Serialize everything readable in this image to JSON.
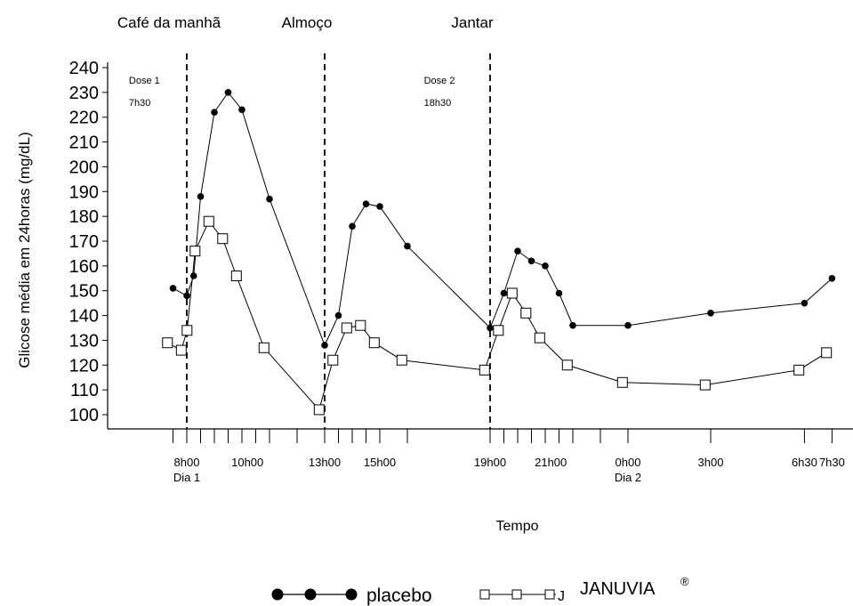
{
  "chart_data": {
    "type": "line",
    "ylabel": "Glicose média em 24horas  (mg/dL)",
    "xlabel": "Tempo",
    "ylim": [
      100,
      240
    ],
    "yticks": [
      100,
      110,
      120,
      130,
      140,
      150,
      160,
      170,
      180,
      190,
      200,
      210,
      220,
      230,
      240
    ],
    "x_unit": "hours since 8h00 (Dia 1)",
    "xlim": [
      -1.3,
      23.7
    ],
    "x_tick_labels": [
      {
        "x": 0,
        "label": "8h00",
        "sublabel": "Dia 1"
      },
      {
        "x": 2.2,
        "label": "10h00"
      },
      {
        "x": 5,
        "label": "13h00"
      },
      {
        "x": 7,
        "label": "15h00"
      },
      {
        "x": 11,
        "label": "19h00"
      },
      {
        "x": 13.2,
        "label": "21h00"
      },
      {
        "x": 16,
        "label": "0h00",
        "sublabel": "Dia 2"
      },
      {
        "x": 19,
        "label": "3h00"
      },
      {
        "x": 22.4,
        "label": "6h30"
      },
      {
        "x": 23.4,
        "label": "7h30"
      }
    ],
    "x_minor_ticks": [
      -0.5,
      0,
      0.5,
      1,
      1.5,
      2,
      2.5,
      3,
      4,
      5,
      5.5,
      6,
      6.5,
      7,
      8,
      11,
      11.5,
      12,
      12.5,
      13,
      13.5,
      14,
      15,
      16,
      19,
      22.4,
      23.4
    ],
    "meal_lines": [
      {
        "x": 0,
        "label": "Café da manhã"
      },
      {
        "x": 5,
        "label": "Almoço"
      },
      {
        "x": 11,
        "label": "Jantar"
      }
    ],
    "annotations": [
      {
        "x": -2.1,
        "y": 235,
        "text": "Dose 1"
      },
      {
        "x": -2.1,
        "y": 226,
        "text": "7h30"
      },
      {
        "x": 8.6,
        "y": 235,
        "text": "Dose 2"
      },
      {
        "x": 8.6,
        "y": 226,
        "text": "18h30"
      }
    ],
    "series": [
      {
        "name": "placebo",
        "marker": "filled-circle",
        "x": [
          -0.5,
          0,
          0.25,
          0.5,
          1,
          1.5,
          2,
          3,
          5,
          5.5,
          6,
          6.5,
          7,
          8,
          11,
          11.5,
          12,
          12.5,
          13,
          13.5,
          14,
          16,
          19,
          22.4,
          23.4
        ],
        "y": [
          151,
          148,
          156,
          188,
          222,
          230,
          223,
          187,
          128,
          140,
          176,
          185,
          184,
          168,
          135,
          149,
          166,
          162,
          160,
          149,
          136,
          136,
          141,
          145,
          155
        ]
      },
      {
        "name": "JANUVIA",
        "marker": "open-square",
        "x": [
          -0.7,
          -0.2,
          0.01,
          0.3,
          0.8,
          1.3,
          1.8,
          2.8,
          4.8,
          5.3,
          5.8,
          6.3,
          6.8,
          7.8,
          10.8,
          11.3,
          11.8,
          12.3,
          12.8,
          13.8,
          15.8,
          18.8,
          22.2,
          23.2
        ],
        "y": [
          129,
          126,
          134,
          166,
          178,
          171,
          156,
          127,
          102,
          122,
          135,
          136,
          129,
          122,
          118,
          134,
          149,
          141,
          131,
          120,
          113,
          112,
          118,
          125
        ]
      }
    ],
    "legend": {
      "position": "bottom",
      "items": [
        {
          "label": "placebo"
        },
        {
          "label": "JANUVIA",
          "superscript": "®",
          "prefix": "J"
        }
      ]
    },
    "colors": {
      "line": "#000000",
      "background": "#ffffff"
    }
  }
}
